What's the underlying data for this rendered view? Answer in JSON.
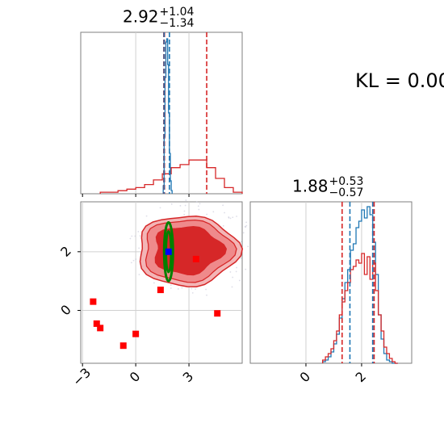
{
  "kl_text": "KL = 0.00",
  "panel_x_title": {
    "value": "2.92",
    "plus": "+1.04",
    "minus": "−1.34"
  },
  "panel_y_title": {
    "value": "1.88",
    "plus": "+0.53",
    "minus": "−0.57"
  },
  "colors": {
    "red": "#d62728",
    "blue": "#1f77b4",
    "green": "#008000",
    "square": "#ff0000",
    "marker": "#0000ff"
  },
  "chart_data": [
    {
      "type": "histogram",
      "panel": "top-left marginal (x)",
      "xlim": [
        -3.1,
        6.0
      ],
      "grid": true,
      "series": [
        {
          "color": "red",
          "quantile_lines": [
            1.58,
            1.62,
            4.0
          ],
          "peak_x": 3.2
        },
        {
          "color": "blue",
          "quantile_lines": [
            1.6,
            1.9
          ],
          "peak_x": 1.8
        }
      ],
      "bins_red_x": [
        -2.0,
        -1.5,
        -1.0,
        -0.5,
        0.0,
        0.5,
        1.0,
        1.5,
        2.0,
        2.5,
        3.0,
        3.5,
        4.0,
        4.5,
        5.0,
        5.5
      ],
      "bins_red_h": [
        0.01,
        0.01,
        0.02,
        0.03,
        0.04,
        0.06,
        0.09,
        0.13,
        0.17,
        0.19,
        0.22,
        0.22,
        0.17,
        0.1,
        0.04,
        0.01
      ],
      "bins_blue_x": [
        1.55,
        1.6,
        1.65,
        1.7,
        1.75,
        1.8,
        1.85,
        1.9,
        1.95,
        2.0
      ],
      "bins_blue_h": [
        0.05,
        0.35,
        0.72,
        0.94,
        0.96,
        0.8,
        0.5,
        0.25,
        0.08,
        0.02
      ]
    },
    {
      "type": "scatter",
      "panel": "bottom-left joint (x vs y)",
      "xlim": [
        -3.1,
        6.0
      ],
      "ylim": [
        -1.8,
        3.7
      ],
      "grid": true,
      "xticks": [
        -3,
        0,
        3
      ],
      "yticks": [
        0,
        2
      ],
      "xtick_labels": [
        "−3",
        "0",
        "3"
      ],
      "ytick_labels": [
        "0",
        "2"
      ],
      "red_squares": [
        {
          "x": -2.4,
          "y": 0.3
        },
        {
          "x": -2.2,
          "y": -0.45
        },
        {
          "x": -2.0,
          "y": -0.6
        },
        {
          "x": -0.7,
          "y": -1.2
        },
        {
          "x": 0.0,
          "y": -0.8
        },
        {
          "x": 1.4,
          "y": 0.7
        },
        {
          "x": 3.4,
          "y": 1.75
        },
        {
          "x": 4.6,
          "y": -0.1
        }
      ],
      "blue_point": {
        "x": 1.85,
        "y": 2.0
      },
      "green_ellipse": {
        "cx": 1.85,
        "cy": 2.0,
        "rx": 0.25,
        "ry": 1.0
      },
      "contour_center": {
        "x": 3.0,
        "y": 2.1
      }
    },
    {
      "type": "histogram",
      "panel": "bottom-right marginal (y)",
      "xlim": [
        -2.0,
        3.8
      ],
      "grid": true,
      "xticks": [
        0,
        2
      ],
      "xtick_labels": [
        "0",
        "2"
      ],
      "series": [
        {
          "color": "red",
          "quantile_lines": [
            1.3,
            2.4,
            2.45
          ]
        },
        {
          "color": "blue",
          "quantile_lines": [
            1.58,
            2.4
          ]
        }
      ],
      "bins_x": [
        0.6,
        0.7,
        0.8,
        0.9,
        1.0,
        1.1,
        1.2,
        1.3,
        1.4,
        1.5,
        1.6,
        1.7,
        1.8,
        1.9,
        2.0,
        2.1,
        2.2,
        2.3,
        2.4,
        2.5,
        2.6,
        2.7,
        2.8,
        2.9,
        3.0,
        3.1,
        3.2
      ],
      "bins_red_h": [
        0.02,
        0.04,
        0.06,
        0.09,
        0.14,
        0.2,
        0.3,
        0.38,
        0.45,
        0.5,
        0.58,
        0.6,
        0.64,
        0.62,
        0.68,
        0.55,
        0.66,
        0.52,
        0.62,
        0.45,
        0.3,
        0.2,
        0.1,
        0.06,
        0.03,
        0.01,
        0.0
      ],
      "bins_blue_h": [
        0.01,
        0.02,
        0.04,
        0.07,
        0.12,
        0.18,
        0.28,
        0.4,
        0.5,
        0.58,
        0.7,
        0.74,
        0.84,
        0.88,
        0.95,
        0.9,
        0.97,
        0.92,
        0.75,
        0.55,
        0.3,
        0.15,
        0.06,
        0.02,
        0.01,
        0.0,
        0.0
      ]
    }
  ]
}
